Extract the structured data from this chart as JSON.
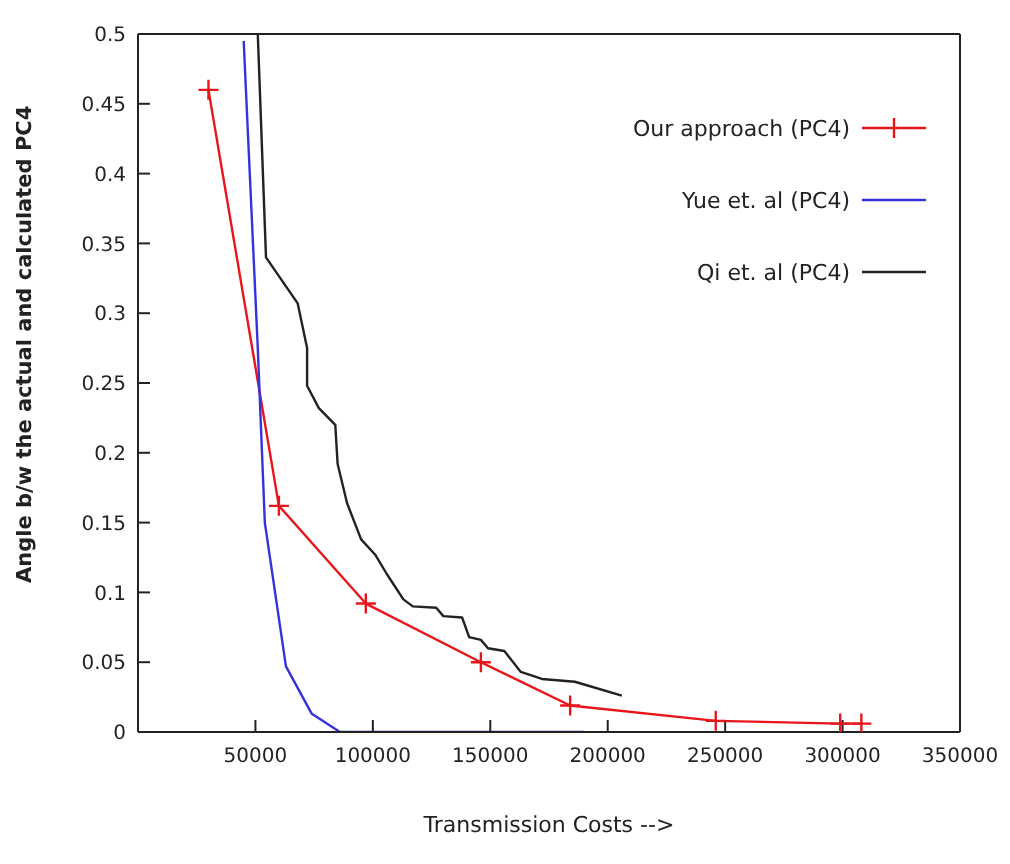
{
  "chart_data": {
    "type": "line",
    "xlabel": "Transmission Costs -->",
    "ylabel": "Angle b/w the actual and calculated PC4",
    "xlim": [
      0,
      350000
    ],
    "xticks": [
      50000,
      100000,
      150000,
      200000,
      250000,
      300000,
      350000
    ],
    "ylim": [
      0,
      0.5
    ],
    "yticks": [
      0,
      0.05,
      0.1,
      0.15,
      0.2,
      0.25,
      0.3,
      0.35,
      0.4,
      0.45,
      0.5
    ],
    "legend": "top right",
    "series": [
      {
        "name": "Our approach (PC4)",
        "color": "#e8161b",
        "marker": "cross",
        "x": [
          30000,
          60000,
          97000,
          146000,
          184000,
          246000,
          299000,
          308000
        ],
        "values": [
          0.46,
          0.162,
          0.092,
          0.05,
          0.019,
          0.008,
          0.006,
          0.006
        ]
      },
      {
        "name": "Yue et. al (PC4)",
        "color": "#3333dd",
        "marker": "none",
        "x": [
          45000,
          51000,
          54000,
          63000,
          74000,
          86000,
          190000
        ],
        "values": [
          0.495,
          0.275,
          0.15,
          0.047,
          0.013,
          0,
          0
        ]
      },
      {
        "name": "Qi et. al (PC4)",
        "color": "#222222",
        "marker": "none",
        "x": [
          51000,
          54500,
          68000,
          72000,
          72000,
          77000,
          84000,
          85000,
          89000,
          95000,
          101000,
          106000,
          113000,
          117000,
          127000,
          130000,
          138000,
          141000,
          146000,
          149000,
          156000,
          163000,
          172000,
          186000,
          206000
        ],
        "values": [
          0.5,
          0.34,
          0.307,
          0.275,
          0.248,
          0.232,
          0.22,
          0.192,
          0.164,
          0.138,
          0.127,
          0.113,
          0.095,
          0.09,
          0.089,
          0.083,
          0.082,
          0.068,
          0.066,
          0.06,
          0.058,
          0.043,
          0.038,
          0.036,
          0.026
        ]
      }
    ]
  }
}
